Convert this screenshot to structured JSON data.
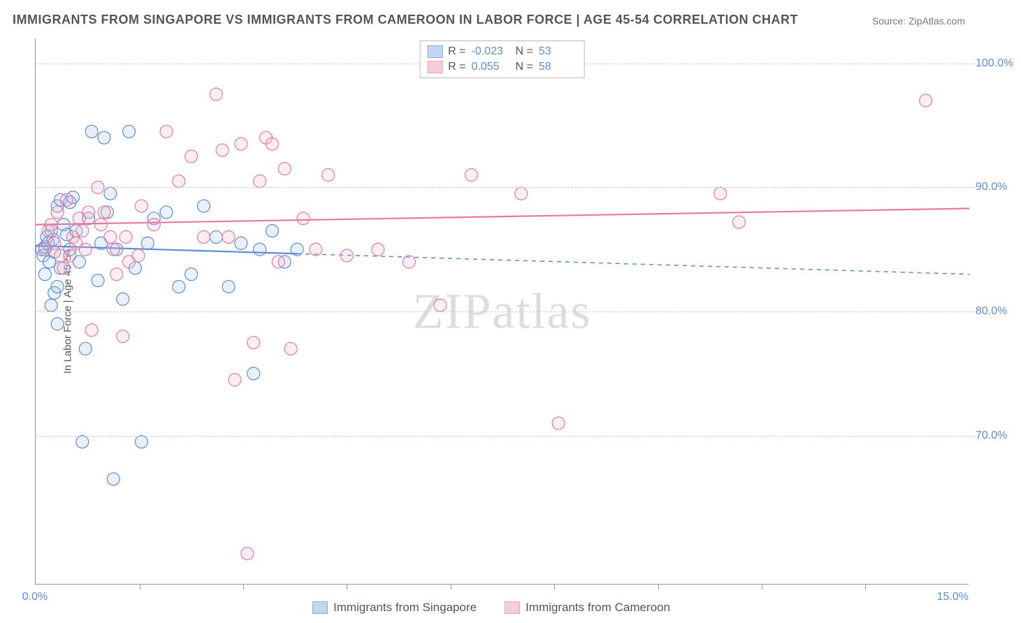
{
  "title": "IMMIGRANTS FROM SINGAPORE VS IMMIGRANTS FROM CAMEROON IN LABOR FORCE | AGE 45-54 CORRELATION CHART",
  "source": "Source: ZipAtlas.com",
  "watermark": "ZIPatlas",
  "chart": {
    "type": "scatter",
    "ylabel": "In Labor Force | Age 45-54",
    "xlim": [
      0,
      15
    ],
    "ylim": [
      58,
      102
    ],
    "xticks": [
      0,
      15
    ],
    "xtick_minor": [
      1.67,
      3.33,
      5.0,
      6.67,
      8.33,
      10.0,
      11.67,
      13.33
    ],
    "xtick_labels": [
      "0.0%",
      "15.0%"
    ],
    "yticks": [
      70,
      80,
      90,
      100
    ],
    "ytick_labels": [
      "70.0%",
      "80.0%",
      "90.0%",
      "100.0%"
    ],
    "grid_color": "#cccccc",
    "axis_color": "#999999",
    "background_color": "#ffffff",
    "marker_radius": 9,
    "marker_stroke_width": 1.2,
    "marker_fill_opacity": 0.25,
    "line_width": 2.2,
    "series": [
      {
        "name": "Immigrants from Singapore",
        "color_stroke": "#5b8dd6",
        "color_fill": "#a8c5ea",
        "R": "-0.023",
        "N": "53",
        "trend": {
          "y_at_x0": 85.3,
          "y_at_x15": 83.0,
          "solid_until_x": 4.2
        },
        "points": [
          [
            0.1,
            85.0
          ],
          [
            0.12,
            84.5
          ],
          [
            0.15,
            85.2
          ],
          [
            0.18,
            86.0
          ],
          [
            0.2,
            85.5
          ],
          [
            0.22,
            84.0
          ],
          [
            0.25,
            86.5
          ],
          [
            0.28,
            85.8
          ],
          [
            0.3,
            84.8
          ],
          [
            0.15,
            83.0
          ],
          [
            0.35,
            88.5
          ],
          [
            0.4,
            89.0
          ],
          [
            0.45,
            87.0
          ],
          [
            0.5,
            86.2
          ],
          [
            0.3,
            81.5
          ],
          [
            0.35,
            82.0
          ],
          [
            0.4,
            83.5
          ],
          [
            0.55,
            88.8
          ],
          [
            0.6,
            89.2
          ],
          [
            0.7,
            84.0
          ],
          [
            0.75,
            69.5
          ],
          [
            0.8,
            77.0
          ],
          [
            0.9,
            94.5
          ],
          [
            1.0,
            82.5
          ],
          [
            1.1,
            94.0
          ],
          [
            1.2,
            89.5
          ],
          [
            1.25,
            66.5
          ],
          [
            1.3,
            85.0
          ],
          [
            1.4,
            81.0
          ],
          [
            1.5,
            94.5
          ],
          [
            1.6,
            83.5
          ],
          [
            1.7,
            69.5
          ],
          [
            1.8,
            85.5
          ],
          [
            1.9,
            87.5
          ],
          [
            2.1,
            88.0
          ],
          [
            2.3,
            82.0
          ],
          [
            2.5,
            83.0
          ],
          [
            2.7,
            88.5
          ],
          [
            2.9,
            86.0
          ],
          [
            3.1,
            82.0
          ],
          [
            3.3,
            85.5
          ],
          [
            3.5,
            75.0
          ],
          [
            3.6,
            85.0
          ],
          [
            3.8,
            86.5
          ],
          [
            4.0,
            84.0
          ],
          [
            4.2,
            85.0
          ],
          [
            0.25,
            80.5
          ],
          [
            0.35,
            79.0
          ],
          [
            0.55,
            85.0
          ],
          [
            0.65,
            86.5
          ],
          [
            0.85,
            87.5
          ],
          [
            1.05,
            85.5
          ],
          [
            1.15,
            88.0
          ]
        ]
      },
      {
        "name": "Immigrants from Cameroon",
        "color_stroke": "#e57ba0",
        "color_fill": "#f4b8cc",
        "R": "0.055",
        "N": "58",
        "trend": {
          "y_at_x0": 87.0,
          "y_at_x15": 88.3,
          "solid_until_x": 15.0
        },
        "points": [
          [
            0.15,
            85.0
          ],
          [
            0.2,
            86.5
          ],
          [
            0.25,
            87.0
          ],
          [
            0.3,
            85.5
          ],
          [
            0.35,
            88.0
          ],
          [
            0.4,
            84.5
          ],
          [
            0.5,
            89.0
          ],
          [
            0.6,
            86.0
          ],
          [
            0.7,
            87.5
          ],
          [
            0.8,
            85.0
          ],
          [
            0.9,
            78.5
          ],
          [
            1.0,
            90.0
          ],
          [
            1.1,
            88.0
          ],
          [
            1.2,
            86.0
          ],
          [
            1.3,
            83.0
          ],
          [
            1.4,
            78.0
          ],
          [
            1.5,
            84.0
          ],
          [
            1.7,
            88.5
          ],
          [
            1.9,
            87.0
          ],
          [
            2.1,
            94.5
          ],
          [
            2.3,
            90.5
          ],
          [
            2.5,
            92.5
          ],
          [
            2.7,
            86.0
          ],
          [
            2.9,
            97.5
          ],
          [
            3.0,
            93.0
          ],
          [
            3.1,
            86.0
          ],
          [
            3.2,
            74.5
          ],
          [
            3.3,
            93.5
          ],
          [
            3.4,
            60.5
          ],
          [
            3.5,
            77.5
          ],
          [
            3.6,
            90.5
          ],
          [
            3.7,
            94.0
          ],
          [
            3.8,
            93.5
          ],
          [
            3.9,
            84.0
          ],
          [
            4.0,
            91.5
          ],
          [
            4.1,
            77.0
          ],
          [
            4.3,
            87.5
          ],
          [
            4.5,
            85.0
          ],
          [
            4.7,
            91.0
          ],
          [
            5.0,
            84.5
          ],
          [
            5.5,
            85.0
          ],
          [
            6.0,
            84.0
          ],
          [
            6.5,
            80.5
          ],
          [
            7.0,
            91.0
          ],
          [
            7.8,
            89.5
          ],
          [
            8.4,
            71.0
          ],
          [
            11.0,
            89.5
          ],
          [
            11.3,
            87.2
          ],
          [
            14.3,
            97.0
          ],
          [
            0.45,
            83.5
          ],
          [
            0.55,
            84.5
          ],
          [
            0.65,
            85.5
          ],
          [
            0.75,
            86.5
          ],
          [
            0.85,
            88.0
          ],
          [
            1.05,
            87.0
          ],
          [
            1.25,
            85.0
          ],
          [
            1.45,
            86.0
          ],
          [
            1.65,
            84.5
          ]
        ]
      }
    ]
  },
  "legend_top": {
    "r_label": "R =",
    "n_label": "N ="
  },
  "legend_bottom": [
    {
      "label": "Immigrants from Singapore",
      "stroke": "#5b8dd6",
      "fill": "#a8c5ea"
    },
    {
      "label": "Immigrants from Cameroon",
      "stroke": "#e57ba0",
      "fill": "#f4b8cc"
    }
  ]
}
